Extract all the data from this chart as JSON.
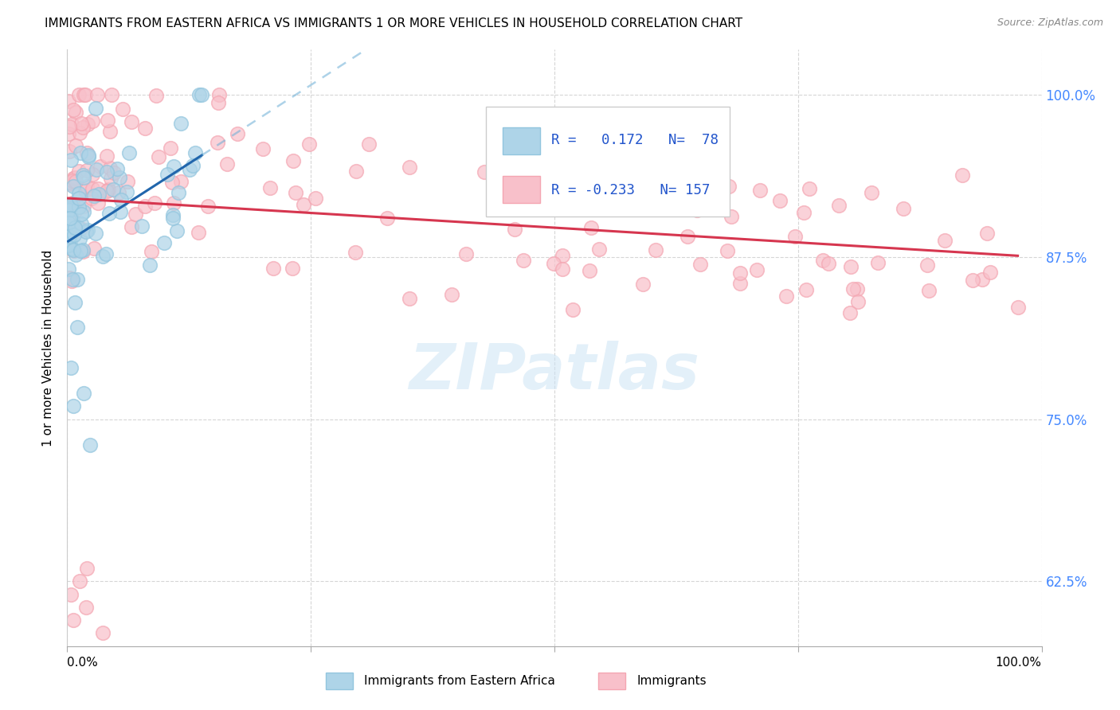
{
  "title": "IMMIGRANTS FROM EASTERN AFRICA VS IMMIGRANTS 1 OR MORE VEHICLES IN HOUSEHOLD CORRELATION CHART",
  "source": "Source: ZipAtlas.com",
  "ylabel": "1 or more Vehicles in Household",
  "ytick_labels": [
    "100.0%",
    "87.5%",
    "75.0%",
    "62.5%"
  ],
  "ytick_values": [
    1.0,
    0.875,
    0.75,
    0.625
  ],
  "xlim": [
    0.0,
    1.0
  ],
  "ylim": [
    0.575,
    1.035
  ],
  "legend_label1": "Immigrants from Eastern Africa",
  "legend_label2": "Immigrants",
  "R1": 0.172,
  "N1": 78,
  "R2": -0.233,
  "N2": 157,
  "blue_color": "#92c5de",
  "pink_color": "#f4a6b2",
  "blue_fill": "#aed4e8",
  "pink_fill": "#f8c0ca",
  "blue_line_color": "#2166ac",
  "pink_line_color": "#d6364f",
  "blue_dashed_color": "#6baed6",
  "watermark": "ZIPatlas",
  "background_color": "#ffffff",
  "grid_color": "#cccccc",
  "ytick_color": "#4488ff",
  "source_color": "#888888",
  "legend_text_color": "#2255cc"
}
